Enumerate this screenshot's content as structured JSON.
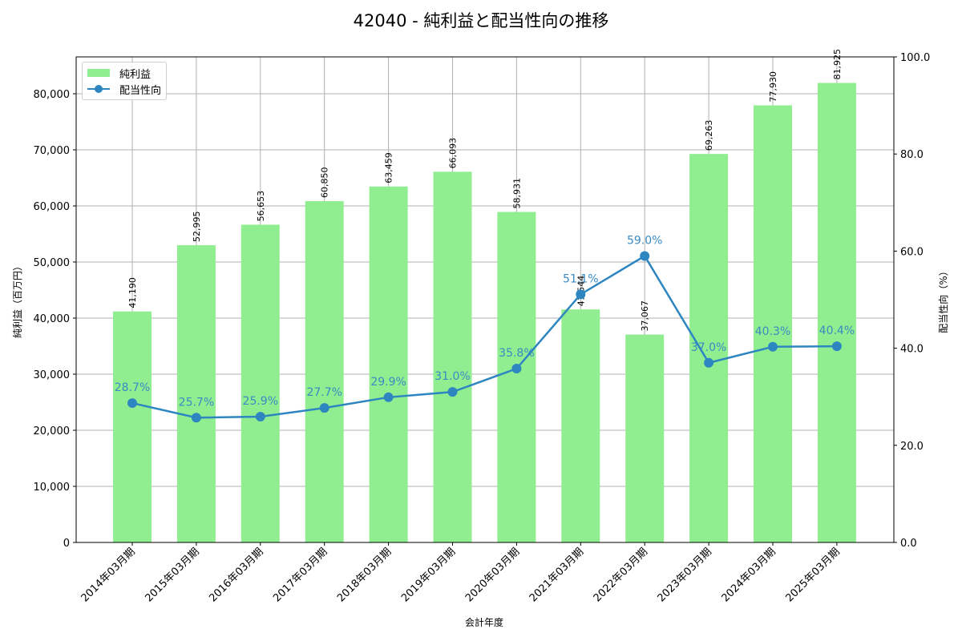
{
  "title": "42040 - 純利益と配当性向の推移",
  "legend": {
    "bar_label": "純利益",
    "line_label": "配当性向"
  },
  "axes": {
    "xlabel": "会計年度",
    "ylabel_left": "純利益（百万円）",
    "ylabel_right": "配当性向（%）",
    "left_ticks": [
      "0",
      "10,000",
      "20,000",
      "30,000",
      "40,000",
      "50,000",
      "60,000",
      "70,000",
      "80,000"
    ],
    "right_ticks": [
      "0.0",
      "20.0",
      "40.0",
      "60.0",
      "80.0",
      "100.0"
    ]
  },
  "colors": {
    "bar": "#90ee90",
    "line": "#2e86c1",
    "pct_label": "#3a8ac4",
    "grid": "#b0b0b0"
  },
  "chart_data": {
    "type": "bar+line",
    "title": "42040 - 純利益と配当性向の推移",
    "xlabel": "会計年度",
    "ylabel": "純利益（百万円）",
    "y2label": "配当性向（%）",
    "categories": [
      "2014年03月期",
      "2015年03月期",
      "2016年03月期",
      "2017年03月期",
      "2018年03月期",
      "2019年03月期",
      "2020年03月期",
      "2021年03月期",
      "2022年03月期",
      "2023年03月期",
      "2024年03月期",
      "2025年03月期"
    ],
    "series": [
      {
        "name": "純利益",
        "type": "bar",
        "axis": "left",
        "values": [
          41190,
          52995,
          56653,
          60850,
          63459,
          66093,
          58931,
          41544,
          37067,
          69263,
          77930,
          81925
        ],
        "labels": [
          "41,190",
          "52,995",
          "56,653",
          "60,850",
          "63,459",
          "66,093",
          "58,931",
          "41,544",
          "37,067",
          "69,263",
          "77,930",
          "81,925"
        ]
      },
      {
        "name": "配当性向",
        "type": "line",
        "axis": "right",
        "values": [
          28.7,
          25.7,
          25.9,
          27.7,
          29.9,
          31.0,
          35.8,
          51.1,
          59.0,
          37.0,
          40.3,
          40.4
        ],
        "labels": [
          "28.7%",
          "25.7%",
          "25.9%",
          "27.7%",
          "29.9%",
          "31.0%",
          "35.8%",
          "51.1%",
          "59.0%",
          "37.0%",
          "40.3%",
          "40.4%"
        ]
      }
    ],
    "ylim": [
      0,
      86571
    ],
    "y2lim": [
      0,
      100
    ],
    "grid": true,
    "legend_position": "upper left"
  }
}
